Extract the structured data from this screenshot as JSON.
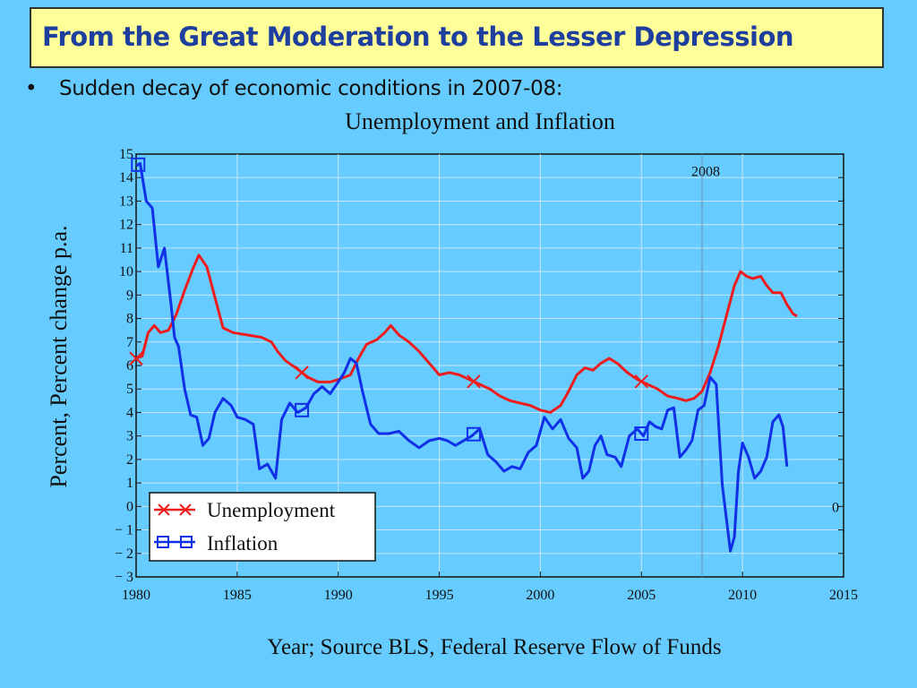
{
  "slide": {
    "title": "From the Great Moderation to the Lesser Depression",
    "bullet_symbol": "•",
    "bullet_text": "Sudden decay of economic conditions in 2007-08:"
  },
  "colors": {
    "background": "#66CCFF",
    "title_box": "#FFFF99",
    "title_text": "#1F3F9F",
    "unemployment": "#EE1C1C",
    "inflation": "#1030E8",
    "grid": "#C8E4F4"
  },
  "chart_data": {
    "type": "line",
    "title": "Unemployment and Inflation",
    "xlabel": "Year; Source BLS, Federal Reserve Flow of Funds",
    "ylabel": "Percent, Percent change p.a.",
    "xlim": [
      1980,
      2015
    ],
    "ylim": [
      -3,
      15
    ],
    "xticks": [
      1980,
      1985,
      1990,
      1995,
      2000,
      2005,
      2010,
      2015
    ],
    "yticks": [
      -3,
      -2,
      -1,
      0,
      1,
      2,
      3,
      4,
      5,
      6,
      7,
      8,
      9,
      10,
      11,
      12,
      13,
      14,
      15
    ],
    "grid": true,
    "legend_position": "bottom-left",
    "annotations": [
      {
        "text": "2008",
        "x": 2008,
        "y": 14.3
      },
      {
        "text": "0",
        "x": 2014.6,
        "y": 0
      }
    ],
    "vline_x": 2008,
    "series": [
      {
        "name": "Unemployment",
        "marker": "x",
        "marker_x": [
          1980,
          1988.2,
          1996.7,
          2005
        ],
        "x": [
          1980,
          1980.3,
          1980.6,
          1980.9,
          1981.2,
          1981.6,
          1982,
          1982.4,
          1982.8,
          1983.1,
          1983.5,
          1983.9,
          1984.3,
          1984.8,
          1985.5,
          1986.2,
          1986.7,
          1987,
          1987.4,
          1987.9,
          1988.5,
          1989,
          1989.6,
          1990,
          1990.6,
          1991,
          1991.4,
          1991.9,
          1992.3,
          1992.6,
          1993,
          1993.5,
          1994,
          1994.5,
          1995,
          1995.5,
          1996,
          1996.5,
          1997,
          1997.5,
          1998,
          1998.5,
          1999,
          1999.5,
          2000,
          2000.5,
          2001,
          2001.4,
          2001.8,
          2002.2,
          2002.6,
          2003,
          2003.4,
          2003.8,
          2004.3,
          2004.8,
          2005.3,
          2005.8,
          2006.3,
          2006.8,
          2007.2,
          2007.6,
          2008,
          2008.4,
          2008.8,
          2009.2,
          2009.6,
          2009.9,
          2010.2,
          2010.5,
          2010.9,
          2011.2,
          2011.5,
          2011.9,
          2012.2,
          2012.5,
          2012.7
        ],
        "y": [
          6.3,
          6.4,
          7.4,
          7.7,
          7.4,
          7.5,
          8.2,
          9.2,
          10.1,
          10.7,
          10.2,
          8.9,
          7.6,
          7.4,
          7.3,
          7.2,
          7.0,
          6.6,
          6.2,
          5.9,
          5.5,
          5.3,
          5.3,
          5.4,
          5.6,
          6.3,
          6.9,
          7.1,
          7.4,
          7.7,
          7.3,
          7.0,
          6.6,
          6.1,
          5.6,
          5.7,
          5.6,
          5.4,
          5.2,
          5.0,
          4.7,
          4.5,
          4.4,
          4.3,
          4.1,
          4.0,
          4.3,
          4.9,
          5.6,
          5.9,
          5.8,
          6.1,
          6.3,
          6.1,
          5.7,
          5.4,
          5.2,
          5.0,
          4.7,
          4.6,
          4.5,
          4.6,
          4.9,
          5.7,
          6.8,
          8.1,
          9.4,
          10.0,
          9.8,
          9.7,
          9.8,
          9.4,
          9.1,
          9.1,
          8.6,
          8.2,
          8.1
        ]
      },
      {
        "name": "Inflation",
        "marker": "square",
        "marker_x": [
          1980.1,
          1988.2,
          1996.7,
          2005
        ],
        "x": [
          1980,
          1980.2,
          1980.5,
          1980.8,
          1981.1,
          1981.4,
          1981.7,
          1981.9,
          1982.1,
          1982.4,
          1982.7,
          1983,
          1983.3,
          1983.6,
          1983.9,
          1984.3,
          1984.7,
          1985,
          1985.4,
          1985.8,
          1986.1,
          1986.5,
          1986.9,
          1987.2,
          1987.6,
          1988,
          1988.4,
          1988.8,
          1989.2,
          1989.6,
          1990,
          1990.3,
          1990.6,
          1990.9,
          1991.2,
          1991.6,
          1992,
          1992.5,
          1993,
          1993.5,
          1994,
          1994.5,
          1995,
          1995.4,
          1995.8,
          1996.2,
          1996.6,
          1997,
          1997.4,
          1997.8,
          1998.2,
          1998.6,
          1999,
          1999.4,
          1999.8,
          2000.2,
          2000.6,
          2001,
          2001.4,
          2001.8,
          2002.1,
          2002.4,
          2002.7,
          2003,
          2003.3,
          2003.7,
          2004,
          2004.4,
          2004.8,
          2005.1,
          2005.4,
          2005.7,
          2006,
          2006.3,
          2006.6,
          2006.9,
          2007.2,
          2007.5,
          2007.8,
          2008.1,
          2008.4,
          2008.7,
          2009,
          2009.2,
          2009.4,
          2009.6,
          2009.8,
          2010,
          2010.3,
          2010.6,
          2010.9,
          2011.2,
          2011.5,
          2011.8,
          2012,
          2012.2
        ],
        "y": [
          14.5,
          14.6,
          13.0,
          12.7,
          10.2,
          11.0,
          8.8,
          7.2,
          6.8,
          5.0,
          3.9,
          3.8,
          2.6,
          2.9,
          4.0,
          4.6,
          4.3,
          3.8,
          3.7,
          3.5,
          1.6,
          1.8,
          1.2,
          3.7,
          4.4,
          4.0,
          4.2,
          4.8,
          5.1,
          4.8,
          5.3,
          5.7,
          6.3,
          6.1,
          4.9,
          3.5,
          3.1,
          3.1,
          3.2,
          2.8,
          2.5,
          2.8,
          2.9,
          2.8,
          2.6,
          2.8,
          3.0,
          3.3,
          2.2,
          1.9,
          1.5,
          1.7,
          1.6,
          2.3,
          2.6,
          3.8,
          3.3,
          3.7,
          2.9,
          2.5,
          1.2,
          1.5,
          2.6,
          3.0,
          2.2,
          2.1,
          1.7,
          3.0,
          3.3,
          3.0,
          3.6,
          3.4,
          3.3,
          4.1,
          4.2,
          2.1,
          2.4,
          2.8,
          4.1,
          4.3,
          5.5,
          5.2,
          0.9,
          -0.5,
          -1.9,
          -1.3,
          1.5,
          2.7,
          2.1,
          1.2,
          1.5,
          2.1,
          3.6,
          3.9,
          3.4,
          1.7
        ]
      }
    ]
  }
}
